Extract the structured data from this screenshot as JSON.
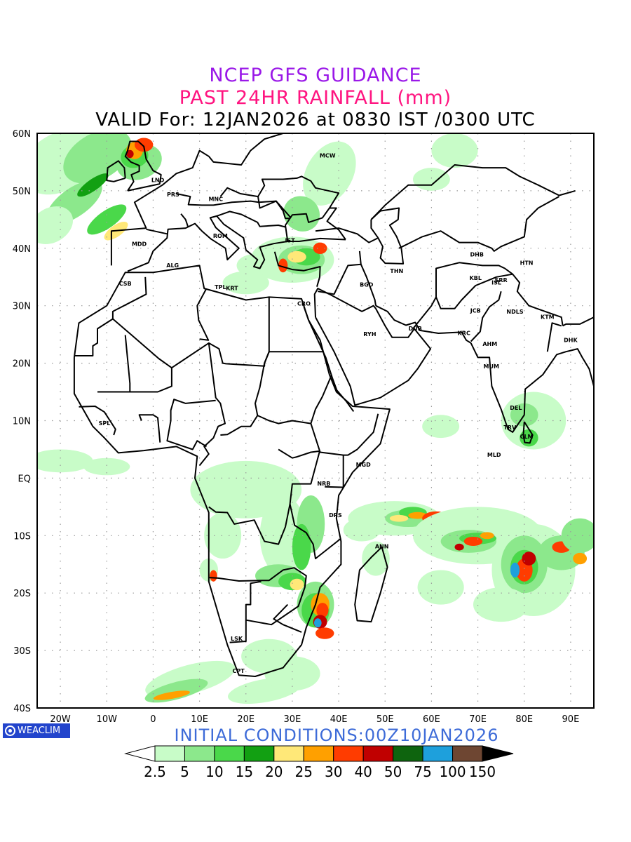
{
  "title": {
    "line1": "NCEP GFS GUIDANCE",
    "line2": "PAST 24HR RAINFALL (mm)",
    "line3": "VALID For: 12JAN2026 at 0830 IST /0300 UTC"
  },
  "initial_conditions": "INITIAL CONDITIONS:00Z10JAN2026",
  "brand": "WEACLIM",
  "map": {
    "extent": {
      "lon": [
        -25,
        95
      ],
      "lat": [
        -40,
        60
      ]
    },
    "lon_ticks": [
      {
        "v": -20,
        "label": "20W"
      },
      {
        "v": -10,
        "label": "10W"
      },
      {
        "v": 0,
        "label": "0"
      },
      {
        "v": 10,
        "label": "10E"
      },
      {
        "v": 20,
        "label": "20E"
      },
      {
        "v": 30,
        "label": "30E"
      },
      {
        "v": 40,
        "label": "40E"
      },
      {
        "v": 50,
        "label": "50E"
      },
      {
        "v": 60,
        "label": "60E"
      },
      {
        "v": 70,
        "label": "70E"
      },
      {
        "v": 80,
        "label": "80E"
      },
      {
        "v": 90,
        "label": "90E"
      }
    ],
    "lat_ticks": [
      {
        "v": 60,
        "label": "60N"
      },
      {
        "v": 50,
        "label": "50N"
      },
      {
        "v": 40,
        "label": "40N"
      },
      {
        "v": 30,
        "label": "30N"
      },
      {
        "v": 20,
        "label": "20N"
      },
      {
        "v": 10,
        "label": "10N"
      },
      {
        "v": 0,
        "label": "EQ"
      },
      {
        "v": -10,
        "label": "10S"
      },
      {
        "v": -20,
        "label": "20S"
      },
      {
        "v": -30,
        "label": "30S"
      },
      {
        "v": -40,
        "label": "40S"
      }
    ],
    "stations": [
      {
        "code": "MCW",
        "lon": 37.6,
        "lat": 55.8
      },
      {
        "code": "LND",
        "lon": 1.0,
        "lat": 51.5
      },
      {
        "code": "PRS",
        "lon": 4.3,
        "lat": 49.0
      },
      {
        "code": "MNC",
        "lon": 13.5,
        "lat": 48.2
      },
      {
        "code": "ROM",
        "lon": 14.5,
        "lat": 41.8
      },
      {
        "code": "MDD",
        "lon": -3.0,
        "lat": 40.4
      },
      {
        "code": "IST",
        "lon": 29.5,
        "lat": 41.0
      },
      {
        "code": "ALG",
        "lon": 4.2,
        "lat": 36.7
      },
      {
        "code": "CSB",
        "lon": -6.0,
        "lat": 33.5
      },
      {
        "code": "TPL",
        "lon": 14.5,
        "lat": 32.9
      },
      {
        "code": "KRT",
        "lon": 17.0,
        "lat": 32.7
      },
      {
        "code": "CRO",
        "lon": 32.5,
        "lat": 30.0
      },
      {
        "code": "BGD",
        "lon": 46.0,
        "lat": 33.3
      },
      {
        "code": "THN",
        "lon": 52.5,
        "lat": 35.7
      },
      {
        "code": "DHB",
        "lon": 69.8,
        "lat": 38.6
      },
      {
        "code": "HTN",
        "lon": 80.5,
        "lat": 37.1
      },
      {
        "code": "KBL",
        "lon": 69.5,
        "lat": 34.5
      },
      {
        "code": "SRR",
        "lon": 75.0,
        "lat": 34.1
      },
      {
        "code": "ISL",
        "lon": 74.0,
        "lat": 33.7
      },
      {
        "code": "NDLS",
        "lon": 78.0,
        "lat": 28.6
      },
      {
        "code": "KTM",
        "lon": 85.0,
        "lat": 27.7
      },
      {
        "code": "JCB",
        "lon": 69.5,
        "lat": 28.8
      },
      {
        "code": "RYH",
        "lon": 46.7,
        "lat": 24.7
      },
      {
        "code": "DUB",
        "lon": 56.5,
        "lat": 25.7
      },
      {
        "code": "KRC",
        "lon": 67.0,
        "lat": 24.9
      },
      {
        "code": "AHM",
        "lon": 72.6,
        "lat": 23.0
      },
      {
        "code": "DHK",
        "lon": 90.0,
        "lat": 23.7
      },
      {
        "code": "MUM",
        "lon": 72.9,
        "lat": 19.1
      },
      {
        "code": "DEL",
        "lon": 78.2,
        "lat": 11.9
      },
      {
        "code": "TRV",
        "lon": 76.9,
        "lat": 8.5
      },
      {
        "code": "CLM",
        "lon": 80.5,
        "lat": 6.9
      },
      {
        "code": "MLD",
        "lon": 73.5,
        "lat": 3.7
      },
      {
        "code": "SPL",
        "lon": -10.5,
        "lat": 9.2
      },
      {
        "code": "MGD",
        "lon": 45.3,
        "lat": 2.0
      },
      {
        "code": "NRB",
        "lon": 36.8,
        "lat": -1.3
      },
      {
        "code": "DRS",
        "lon": 39.3,
        "lat": -6.8
      },
      {
        "code": "ANN",
        "lon": 49.3,
        "lat": -12.2
      },
      {
        "code": "LSK",
        "lon": 18.0,
        "lat": -28.3
      },
      {
        "code": "CPT",
        "lon": 18.4,
        "lat": -33.9
      }
    ]
  },
  "colorbar": {
    "ticks": [
      "2.5",
      "5",
      "10",
      "15",
      "20",
      "25",
      "30",
      "40",
      "50",
      "75",
      "100",
      "150"
    ],
    "colors": [
      "#c8fcc8",
      "#8ce88c",
      "#4ad84a",
      "#12a012",
      "#ffe878",
      "#ffa000",
      "#ff3c00",
      "#c00000",
      "#0e640e",
      "#1ea0dc",
      "#6e4632"
    ]
  }
}
